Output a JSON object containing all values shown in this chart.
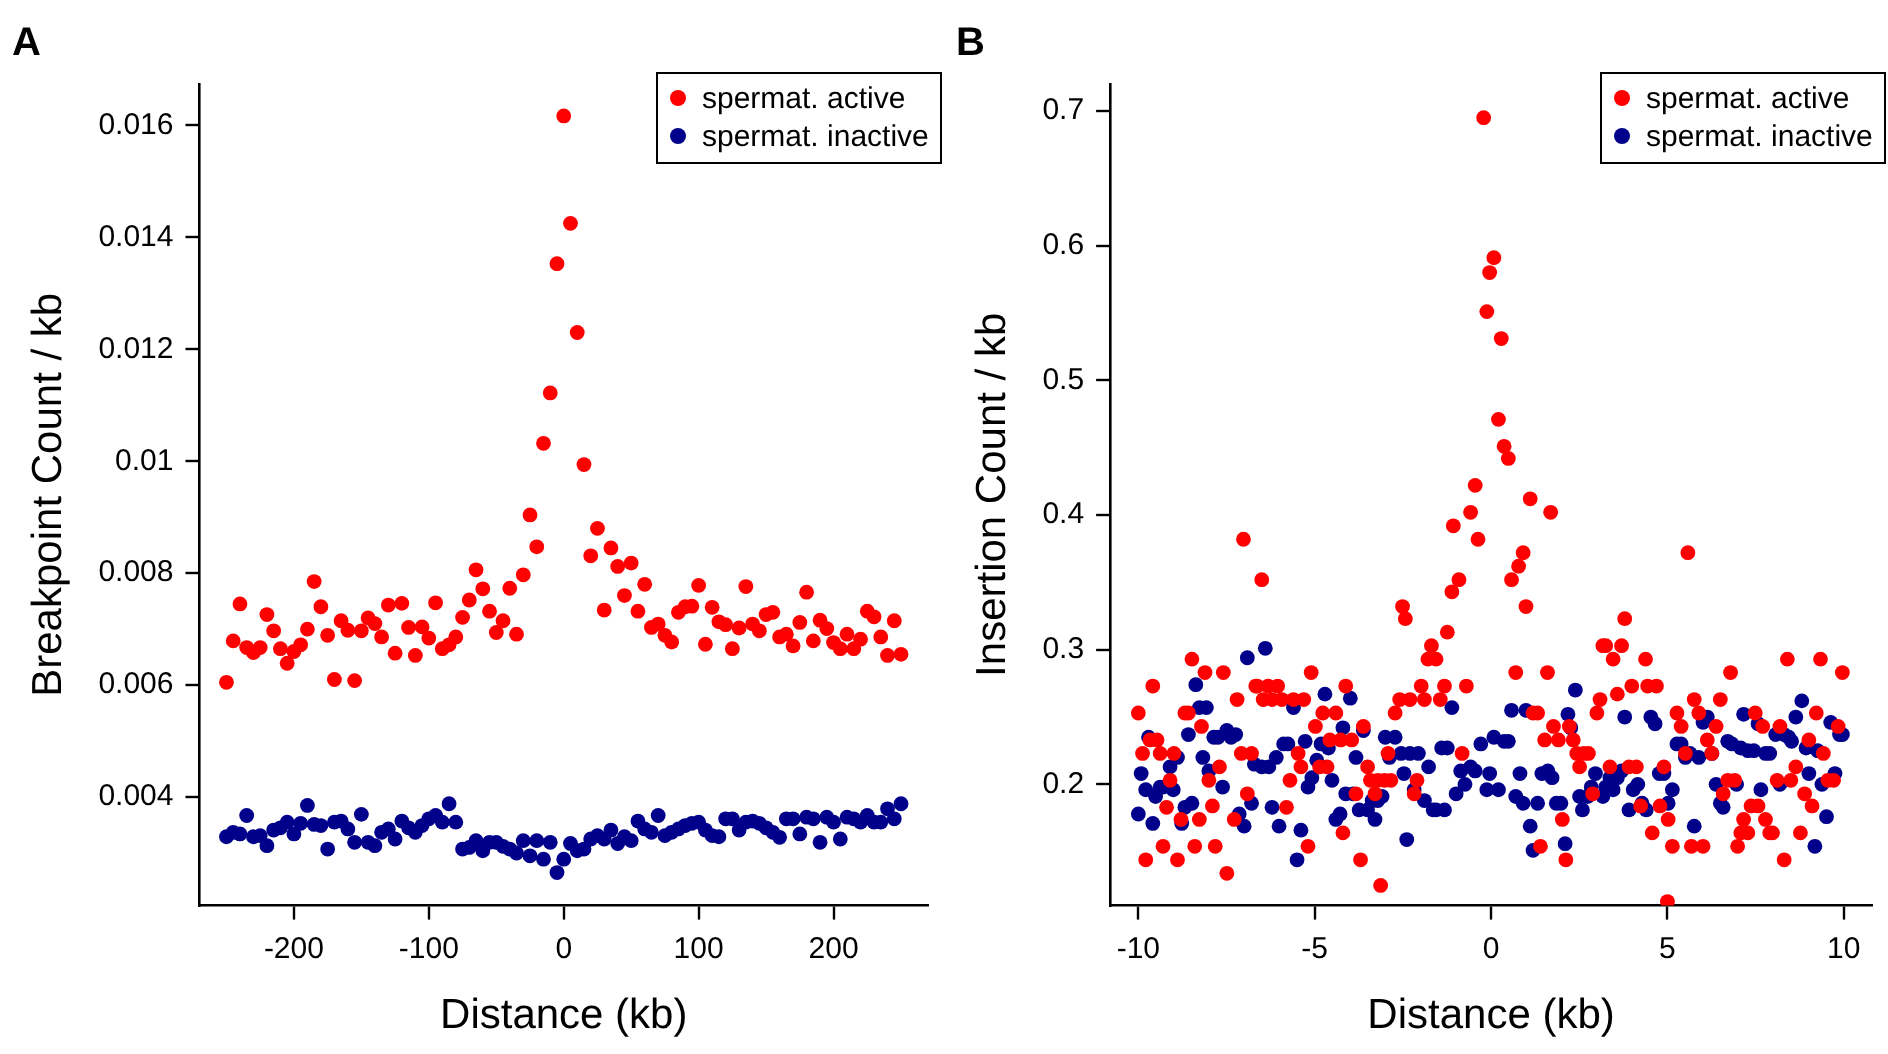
{
  "chart_data": [
    {
      "type": "scatter",
      "title": "A",
      "xlabel": "Distance (kb)",
      "ylabel": "Breakpoint Count / kb",
      "xlim": [
        -270,
        270
      ],
      "xticks": [
        -200,
        -100,
        0,
        100,
        200
      ],
      "ylim": [
        0.00206,
        0.01674
      ],
      "yticks": [
        0.004,
        0.006,
        0.008,
        0.01,
        0.012,
        0.014,
        0.016
      ],
      "legend": "top right",
      "marker": "circle",
      "x": [
        -250,
        -245,
        -240,
        -235,
        -230,
        -225,
        -220,
        -215,
        -210,
        -205,
        -200,
        -195,
        -190,
        -185,
        -180,
        -175,
        -170,
        -165,
        -160,
        -155,
        -150,
        -145,
        -140,
        -135,
        -130,
        -125,
        -120,
        -115,
        -110,
        -105,
        -100,
        -95,
        -90,
        -85,
        -80,
        -75,
        -70,
        -65,
        -60,
        -55,
        -50,
        -45,
        -40,
        -35,
        -30,
        -25,
        -20,
        -15,
        -10,
        -5,
        0,
        5,
        10,
        15,
        20,
        25,
        30,
        35,
        40,
        45,
        50,
        55,
        60,
        65,
        70,
        75,
        80,
        85,
        90,
        95,
        100,
        105,
        110,
        115,
        120,
        125,
        130,
        135,
        140,
        145,
        150,
        155,
        160,
        165,
        170,
        175,
        180,
        185,
        190,
        195,
        200,
        205,
        210,
        215,
        220,
        225,
        230,
        235,
        240,
        245,
        250
      ],
      "series": [
        {
          "name": "spermat. active",
          "color": "#ff0000",
          "values": [
            0.00605,
            0.00679,
            0.00745,
            0.00667,
            0.00658,
            0.00667,
            0.00726,
            0.00697,
            0.00665,
            0.00639,
            0.0066,
            0.00672,
            0.007,
            0.00785,
            0.0074,
            0.00689,
            0.0061,
            0.00715,
            0.00698,
            0.00608,
            0.00697,
            0.0072,
            0.0071,
            0.00686,
            0.00743,
            0.00657,
            0.00746,
            0.00703,
            0.00653,
            0.00704,
            0.00684,
            0.00747,
            0.00665,
            0.00672,
            0.00686,
            0.00721,
            0.00752,
            0.00806,
            0.00772,
            0.00732,
            0.00694,
            0.00715,
            0.00773,
            0.00691,
            0.00797,
            0.00904,
            0.00847,
            0.01032,
            0.01122,
            0.01353,
            0.01617,
            0.01425,
            0.0123,
            0.00994,
            0.00831,
            0.0088,
            0.00734,
            0.00845,
            0.00812,
            0.0076,
            0.00818,
            0.00732,
            0.0078,
            0.00703,
            0.00709,
            0.00689,
            0.00677,
            0.0073,
            0.0074,
            0.00741,
            0.00778,
            0.00673,
            0.00739,
            0.00713,
            0.00708,
            0.00665,
            0.00702,
            0.00776,
            0.00709,
            0.00697,
            0.00726,
            0.0073,
            0.00686,
            0.00691,
            0.0067,
            0.00712,
            0.00766,
            0.00679,
            0.00716,
            0.00701,
            0.00676,
            0.00665,
            0.00691,
            0.00665,
            0.00682,
            0.00732,
            0.00722,
            0.00686,
            0.00653,
            0.00715,
            0.00655
          ]
        },
        {
          "name": "spermat. inactive",
          "color": "#00008b",
          "values": [
            0.00329,
            0.00337,
            0.00334,
            0.00367,
            0.00329,
            0.00331,
            0.00313,
            0.00341,
            0.00345,
            0.00355,
            0.00334,
            0.00353,
            0.00385,
            0.00351,
            0.00349,
            0.00307,
            0.00355,
            0.00357,
            0.00343,
            0.00319,
            0.00369,
            0.00319,
            0.00313,
            0.00337,
            0.00343,
            0.00325,
            0.00357,
            0.00345,
            0.00337,
            0.00349,
            0.00361,
            0.00367,
            0.00355,
            0.00388,
            0.00355,
            0.00307,
            0.0031,
            0.00322,
            0.00304,
            0.00319,
            0.00319,
            0.00312,
            0.00307,
            0.003,
            0.00322,
            0.00295,
            0.00322,
            0.00289,
            0.00319,
            0.00265,
            0.00289,
            0.00317,
            0.00304,
            0.00307,
            0.00325,
            0.00331,
            0.00325,
            0.00341,
            0.00317,
            0.00329,
            0.00322,
            0.00357,
            0.00343,
            0.00337,
            0.00367,
            0.00331,
            0.00337,
            0.00343,
            0.00349,
            0.00353,
            0.00355,
            0.00341,
            0.00331,
            0.00329,
            0.00361,
            0.00361,
            0.00341,
            0.00355,
            0.00357,
            0.00353,
            0.00345,
            0.00337,
            0.00328,
            0.00361,
            0.00361,
            0.00334,
            0.00364,
            0.00361,
            0.00319,
            0.00364,
            0.00355,
            0.00325,
            0.00364,
            0.00361,
            0.00355,
            0.00367,
            0.00355,
            0.00355,
            0.00379,
            0.00361,
            0.00388
          ]
        }
      ]
    },
    {
      "type": "scatter",
      "title": "B",
      "xlabel": "Distance (kb)",
      "ylabel": "Insertion Count / kb",
      "xlim": [
        -10.8,
        10.8
      ],
      "xticks": [
        -10,
        -5,
        0,
        5,
        10
      ],
      "ylim": [
        0.11,
        0.72
      ],
      "yticks": [
        0.2,
        0.3,
        0.4,
        0.5,
        0.6,
        0.7
      ],
      "legend": "top right",
      "marker": "circle",
      "series": [
        {
          "name": "spermat. active",
          "color": "#ff0000",
          "x": [
            -10.0,
            -9.88,
            -9.79,
            -9.67,
            -9.59,
            -9.47,
            -9.38,
            -9.3,
            -9.2,
            -9.1,
            -8.99,
            -8.89,
            -8.79,
            -8.68,
            -8.58,
            -8.48,
            -8.4,
            -8.27,
            -8.21,
            -8.11,
            -8.0,
            -7.9,
            -7.82,
            -7.7,
            -7.59,
            -7.49,
            -7.28,
            -7.2,
            -7.08,
            -7.02,
            -6.91,
            -6.79,
            -6.67,
            -6.63,
            -6.5,
            -6.46,
            -6.32,
            -6.21,
            -6.05,
            -5.93,
            -5.8,
            -5.7,
            -5.6,
            -5.47,
            -5.39,
            -5.31,
            -5.19,
            -5.1,
            -4.98,
            -4.86,
            -4.77,
            -4.65,
            -4.57,
            -4.4,
            -4.26,
            -4.2,
            -4.12,
            -3.95,
            -3.83,
            -3.7,
            -3.62,
            -3.5,
            -3.42,
            -3.29,
            -3.21,
            -3.13,
            -3.02,
            -2.92,
            -2.84,
            -2.72,
            -2.59,
            -2.51,
            -2.43,
            -2.3,
            -2.18,
            -2.1,
            -1.98,
            -1.89,
            -1.79,
            -1.69,
            -1.56,
            -1.44,
            -1.32,
            -1.24,
            -1.11,
            -1.07,
            -0.91,
            -0.82,
            -0.7,
            -0.58,
            -0.45,
            -0.37,
            -0.21,
            -0.12,
            -0.04,
            0.08,
            0.21,
            0.29,
            0.37,
            0.49,
            0.58,
            0.7,
            0.78,
            0.91,
            0.99,
            1.11,
            1.19,
            1.32,
            1.4,
            1.52,
            1.6,
            1.69,
            1.77,
            1.91,
            2.02,
            2.12,
            2.22,
            2.33,
            2.43,
            2.51,
            2.63,
            2.76,
            2.88,
            3.0,
            3.09,
            3.17,
            3.25,
            3.37,
            3.46,
            3.58,
            3.7,
            3.79,
            3.91,
            3.99,
            4.12,
            4.24,
            4.38,
            4.44,
            4.57,
            4.69,
            4.79,
            4.9,
            5.0,
            5.02,
            5.14,
            5.27,
            5.39,
            5.51,
            5.58,
            5.68,
            5.76,
            5.89,
            6.01,
            6.13,
            6.26,
            6.38,
            6.5,
            6.58,
            6.71,
            6.79,
            6.91,
            6.99,
            7.08,
            7.16,
            7.28,
            7.37,
            7.49,
            7.57,
            7.7,
            7.78,
            7.9,
            7.98,
            8.11,
            8.19,
            8.31,
            8.4,
            8.5,
            8.64,
            8.77,
            8.89,
            9.01,
            9.1,
            9.22,
            9.34,
            9.42,
            9.55,
            9.71,
            9.84,
            9.96
          ],
          "values": [
            0.253,
            0.223,
            0.144,
            0.233,
            0.273,
            0.233,
            0.223,
            0.154,
            0.183,
            0.203,
            0.223,
            0.144,
            0.174,
            0.253,
            0.253,
            0.293,
            0.154,
            0.174,
            0.243,
            0.283,
            0.203,
            0.184,
            0.154,
            0.213,
            0.283,
            0.134,
            0.174,
            0.263,
            0.223,
            0.382,
            0.193,
            0.223,
            0.273,
            0.273,
            0.352,
            0.263,
            0.273,
            0.263,
            0.273,
            0.263,
            0.183,
            0.203,
            0.263,
            0.223,
            0.213,
            0.263,
            0.154,
            0.283,
            0.243,
            0.213,
            0.253,
            0.213,
            0.233,
            0.253,
            0.233,
            0.164,
            0.273,
            0.233,
            0.193,
            0.144,
            0.243,
            0.213,
            0.203,
            0.193,
            0.203,
            0.125,
            0.203,
            0.223,
            0.203,
            0.253,
            0.263,
            0.332,
            0.323,
            0.263,
            0.193,
            0.203,
            0.273,
            0.263,
            0.293,
            0.303,
            0.293,
            0.263,
            0.273,
            0.313,
            0.343,
            0.392,
            0.352,
            0.223,
            0.273,
            0.402,
            0.422,
            0.382,
            0.695,
            0.551,
            0.58,
            0.591,
            0.471,
            0.531,
            0.451,
            0.442,
            0.352,
            0.283,
            0.362,
            0.372,
            0.332,
            0.412,
            0.253,
            0.253,
            0.154,
            0.233,
            0.283,
            0.402,
            0.243,
            0.233,
            0.174,
            0.144,
            0.243,
            0.233,
            0.223,
            0.213,
            0.223,
            0.223,
            0.193,
            0.253,
            0.263,
            0.303,
            0.303,
            0.213,
            0.293,
            0.267,
            0.303,
            0.323,
            0.213,
            0.273,
            0.213,
            0.184,
            0.293,
            0.273,
            0.164,
            0.273,
            0.184,
            0.213,
            0.113,
            0.174,
            0.154,
            0.253,
            0.243,
            0.223,
            0.372,
            0.154,
            0.263,
            0.253,
            0.154,
            0.233,
            0.223,
            0.243,
            0.263,
            0.193,
            0.203,
            0.283,
            0.203,
            0.154,
            0.164,
            0.174,
            0.164,
            0.184,
            0.253,
            0.184,
            0.243,
            0.174,
            0.164,
            0.164,
            0.203,
            0.243,
            0.144,
            0.293,
            0.203,
            0.213,
            0.164,
            0.193,
            0.233,
            0.184,
            0.253,
            0.293,
            0.223,
            0.203,
            0.203,
            0.243,
            0.283
          ]
        },
        {
          "name": "spermat. inactive",
          "color": "#00008b",
          "x": [
            -10.0,
            -9.92,
            -9.79,
            -9.71,
            -9.59,
            -9.51,
            -9.38,
            -9.3,
            -9.1,
            -9.01,
            -8.89,
            -8.77,
            -8.68,
            -8.58,
            -8.48,
            -8.37,
            -8.27,
            -8.17,
            -8.07,
            -8.0,
            -7.86,
            -7.74,
            -7.61,
            -7.49,
            -7.37,
            -7.24,
            -7.14,
            -7.0,
            -6.91,
            -6.79,
            -6.71,
            -6.5,
            -6.4,
            -6.3,
            -6.21,
            -6.09,
            -6.01,
            -5.88,
            -5.76,
            -5.6,
            -5.5,
            -5.39,
            -5.27,
            -5.19,
            -5.08,
            -4.94,
            -4.82,
            -4.71,
            -4.61,
            -4.51,
            -4.4,
            -4.28,
            -4.2,
            -4.12,
            -3.99,
            -3.91,
            -3.83,
            -3.74,
            -3.62,
            -3.5,
            -3.37,
            -3.29,
            -3.21,
            -3.09,
            -3.0,
            -2.88,
            -2.72,
            -2.55,
            -2.47,
            -2.39,
            -2.3,
            -2.18,
            -2.06,
            -1.89,
            -1.77,
            -1.64,
            -1.56,
            -1.4,
            -1.32,
            -1.24,
            -1.11,
            -0.99,
            -0.86,
            -0.74,
            -0.58,
            -0.45,
            -0.29,
            -0.12,
            -0.04,
            0.08,
            0.21,
            0.37,
            0.49,
            0.58,
            0.7,
            0.82,
            0.91,
            0.99,
            1.11,
            1.19,
            1.32,
            1.44,
            1.52,
            1.61,
            1.73,
            1.85,
            1.98,
            2.1,
            2.18,
            2.26,
            2.39,
            2.51,
            2.59,
            2.74,
            2.84,
            2.96,
            3.09,
            3.17,
            3.25,
            3.37,
            3.46,
            3.58,
            3.7,
            3.79,
            3.91,
            4.03,
            4.16,
            4.28,
            4.4,
            4.53,
            4.65,
            4.77,
            4.9,
            5.02,
            5.14,
            5.27,
            5.39,
            5.51,
            5.64,
            5.76,
            5.89,
            6.01,
            6.13,
            6.26,
            6.38,
            6.5,
            6.58,
            6.71,
            6.83,
            6.96,
            7.08,
            7.16,
            7.28,
            7.45,
            7.57,
            7.65,
            7.78,
            7.9,
            8.07,
            8.19,
            8.31,
            8.44,
            8.52,
            8.64,
            8.81,
            8.93,
            9.01,
            9.18,
            9.26,
            9.38,
            9.51,
            9.63,
            9.75,
            9.88,
            9.96
          ],
          "values": [
            0.178,
            0.208,
            0.196,
            0.235,
            0.171,
            0.191,
            0.198,
            0.198,
            0.213,
            0.196,
            0.22,
            0.171,
            0.183,
            0.237,
            0.186,
            0.274,
            0.257,
            0.22,
            0.257,
            0.21,
            0.235,
            0.235,
            0.198,
            0.24,
            0.235,
            0.237,
            0.178,
            0.169,
            0.294,
            0.186,
            0.215,
            0.213,
            0.301,
            0.213,
            0.183,
            0.22,
            0.169,
            0.23,
            0.23,
            0.257,
            0.144,
            0.166,
            0.232,
            0.198,
            0.205,
            0.218,
            0.23,
            0.267,
            0.227,
            0.203,
            0.174,
            0.178,
            0.242,
            0.193,
            0.264,
            0.193,
            0.22,
            0.181,
            0.24,
            0.181,
            0.188,
            0.174,
            0.188,
            0.191,
            0.235,
            0.22,
            0.235,
            0.223,
            0.208,
            0.159,
            0.223,
            0.196,
            0.223,
            0.188,
            0.213,
            0.181,
            0.181,
            0.227,
            0.181,
            0.227,
            0.257,
            0.193,
            0.21,
            0.2,
            0.213,
            0.21,
            0.23,
            0.196,
            0.208,
            0.235,
            0.196,
            0.232,
            0.232,
            0.255,
            0.191,
            0.208,
            0.186,
            0.255,
            0.169,
            0.151,
            0.186,
            0.208,
            null,
            0.21,
            0.205,
            0.186,
            0.186,
            0.156,
            0.252,
            0.242,
            0.27,
            0.191,
            0.181,
            0.191,
            0.198,
            0.208,
            null,
            0.191,
            0.198,
            0.205,
            0.196,
            0.205,
            0.21,
            0.25,
            0.181,
            0.196,
            0.2,
            0.186,
            0.181,
            0.25,
            0.245,
            0.208,
            0.208,
            0.186,
            0.196,
            0.23,
            0.23,
            0.22,
            0.223,
            0.169,
            0.22,
            0.246,
            0.25,
            0.223,
            0.2,
            0.186,
            0.183,
            0.232,
            0.23,
            0.2,
            0.227,
            0.252,
            0.225,
            0.225,
            0.245,
            0.196,
            0.223,
            0.223,
            0.237,
            0.2,
            0.237,
            0.235,
            0.232,
            0.25,
            0.262,
            0.227,
            0.208,
            0.154,
            0.225,
            0.2,
            0.176,
            0.246,
            0.208,
            0.237,
            0.237
          ]
        }
      ]
    }
  ]
}
